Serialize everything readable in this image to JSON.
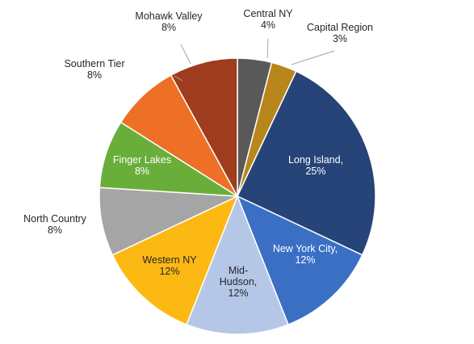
{
  "chart_data": {
    "type": "pie",
    "title": "",
    "legend": "none",
    "slices": [
      {
        "label": "Central NY",
        "value": 4,
        "value_label": "4%",
        "color": "#595959",
        "label_lines": [
          "Central NY",
          "4%"
        ]
      },
      {
        "label": "Capital Region",
        "value": 3,
        "value_label": "3%",
        "color": "#b8861b",
        "label_lines": [
          "Capital Region",
          "3%"
        ]
      },
      {
        "label": "Long Island",
        "value": 25,
        "value_label": "25%",
        "color": "#264478",
        "label_lines": [
          "Long Island,",
          "25%"
        ]
      },
      {
        "label": "New York City",
        "value": 12,
        "value_label": "12%",
        "color": "#3a6fc4",
        "label_lines": [
          "New York City,",
          "12%"
        ]
      },
      {
        "label": "Mid-Hudson",
        "value": 12,
        "value_label": "12%",
        "color": "#b4c7e7",
        "label_lines": [
          "Mid-",
          "Hudson,",
          "12%"
        ]
      },
      {
        "label": "Western NY",
        "value": 12,
        "value_label": "12%",
        "color": "#fdb913",
        "label_lines": [
          "Western NY",
          "12%"
        ]
      },
      {
        "label": "North Country",
        "value": 8,
        "value_label": "8%",
        "color": "#a5a5a5",
        "label_lines": [
          "North Country",
          "8%"
        ]
      },
      {
        "label": "Finger Lakes",
        "value": 8,
        "value_label": "8%",
        "color": "#6aae3a",
        "label_lines": [
          "Finger Lakes",
          "8%"
        ]
      },
      {
        "label": "Southern Tier",
        "value": 8,
        "value_label": "8%",
        "color": "#ed7026",
        "label_lines": [
          "Southern Tier",
          "8%"
        ]
      },
      {
        "label": "Mohawk Valley",
        "value": 8,
        "value_label": "8%",
        "color": "#9e3c1d",
        "label_lines": [
          "Mohawk Valley",
          "8%"
        ]
      }
    ]
  }
}
